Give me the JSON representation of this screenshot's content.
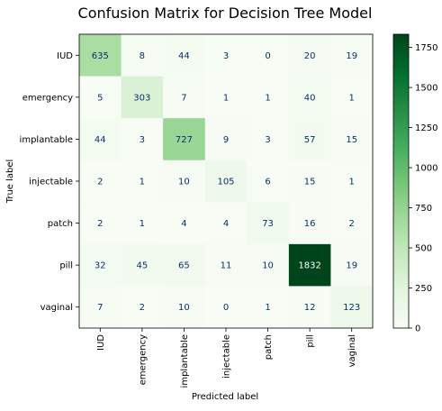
{
  "chart_data": {
    "type": "heatmap",
    "title": "Confusion Matrix for Decision Tree Model",
    "xlabel": "Predicted label",
    "ylabel": "True label",
    "x_categories": [
      "IUD",
      "emergency",
      "implantable",
      "injectable",
      "patch",
      "pill",
      "vaginal"
    ],
    "y_categories": [
      "IUD",
      "emergency",
      "implantable",
      "injectable",
      "patch",
      "pill",
      "vaginal"
    ],
    "matrix": [
      [
        635,
        8,
        44,
        3,
        0,
        20,
        19
      ],
      [
        5,
        303,
        7,
        1,
        1,
        40,
        1
      ],
      [
        44,
        3,
        727,
        9,
        3,
        57,
        15
      ],
      [
        2,
        1,
        10,
        105,
        6,
        15,
        1
      ],
      [
        2,
        1,
        4,
        4,
        73,
        16,
        2
      ],
      [
        32,
        45,
        65,
        11,
        10,
        1832,
        19
      ],
      [
        7,
        2,
        10,
        0,
        1,
        12,
        123
      ]
    ],
    "colormap": "Greens",
    "color_range": [
      0,
      1832
    ],
    "colorbar_ticks": [
      0,
      250,
      500,
      750,
      1000,
      1250,
      1500,
      1750
    ]
  }
}
